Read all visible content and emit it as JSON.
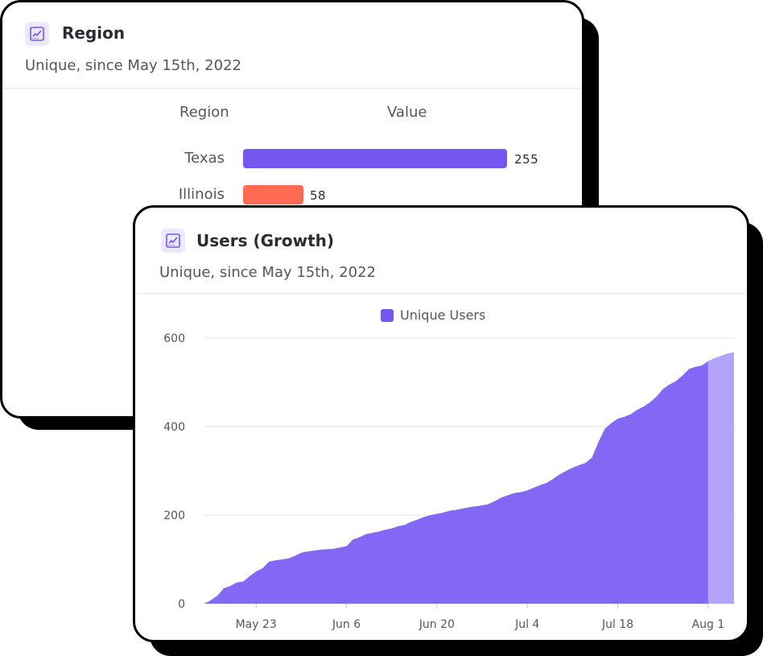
{
  "colors": {
    "accent": "#7557f0",
    "secondary": "#fe6a52",
    "area_fill": "#8467f4",
    "area_recent": "#b3a3f9"
  },
  "region_card": {
    "icon": "line-chart-icon",
    "title": "Region",
    "subtitle": "Unique, since May 15th, 2022",
    "col_region": "Region",
    "col_value": "Value",
    "rows": [
      {
        "label": "Texas",
        "value": "255"
      },
      {
        "label": "Illinois",
        "value": "58"
      }
    ]
  },
  "growth_card": {
    "icon": "line-chart-icon",
    "title": "Users (Growth)",
    "subtitle": "Unique, since May 15th, 2022"
  },
  "chart_data": {
    "type": "area",
    "title": "Users (Growth)",
    "subtitle": "Unique, since May 15th, 2022",
    "legend": "top-center",
    "grid": true,
    "ylim": [
      0,
      600
    ],
    "y_ticks": [
      "0",
      "200",
      "400",
      "600"
    ],
    "x_ticks": [
      {
        "label": "May 23",
        "day": 8
      },
      {
        "label": "Jun 6",
        "day": 22
      },
      {
        "label": "Jun 20",
        "day": 36
      },
      {
        "label": "Jul 4",
        "day": 50
      },
      {
        "label": "Jul 18",
        "day": 64
      },
      {
        "label": "Aug 1",
        "day": 78
      }
    ],
    "x_start": "2022-05-15",
    "series": [
      {
        "name": "Unique Users",
        "values": [
          0,
          8,
          18,
          35,
          40,
          48,
          50,
          62,
          73,
          80,
          95,
          98,
          100,
          102,
          108,
          115,
          118,
          120,
          122,
          123,
          124,
          127,
          130,
          145,
          150,
          157,
          160,
          163,
          167,
          170,
          175,
          178,
          185,
          190,
          196,
          200,
          203,
          206,
          210,
          212,
          215,
          218,
          220,
          222,
          225,
          232,
          240,
          245,
          250,
          252,
          256,
          262,
          268,
          273,
          282,
          292,
          300,
          307,
          313,
          318,
          330,
          365,
          395,
          408,
          418,
          422,
          428,
          438,
          445,
          455,
          468,
          485,
          495,
          503,
          515,
          530,
          535,
          538,
          548,
          555,
          560,
          565,
          568
        ]
      }
    ],
    "partial_from_day": 78
  }
}
